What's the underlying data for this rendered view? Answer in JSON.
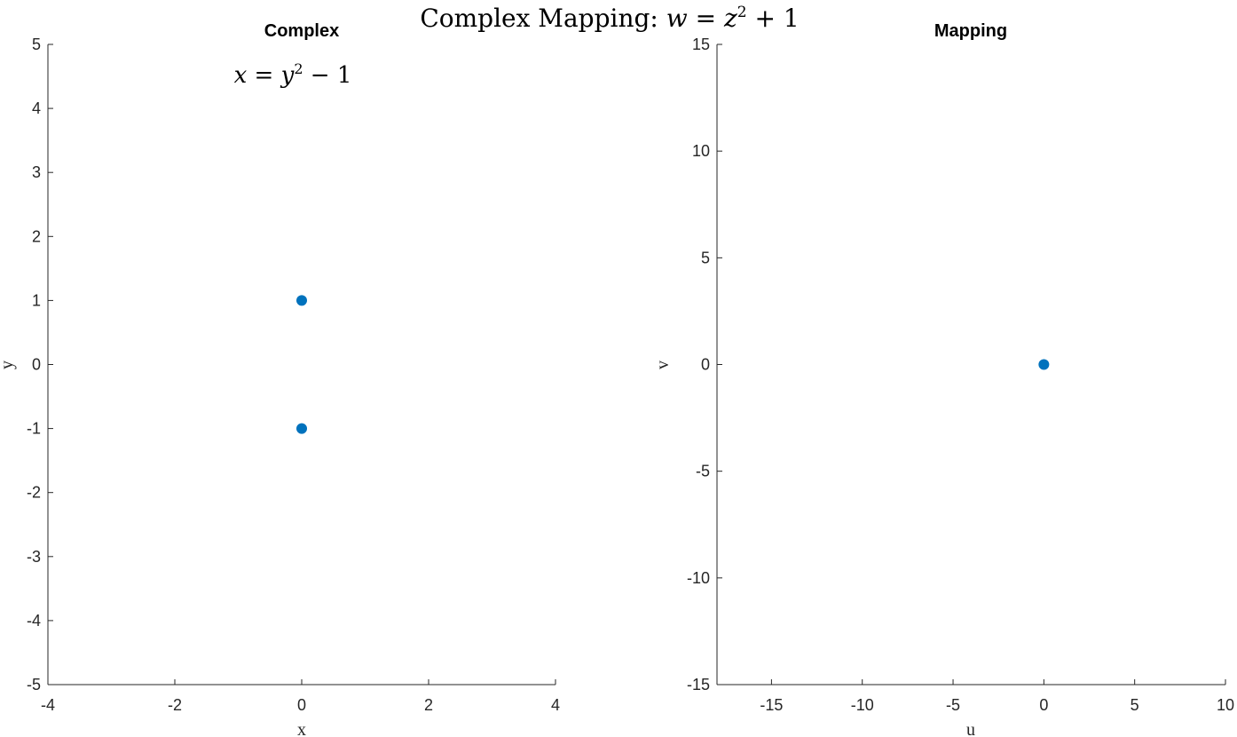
{
  "figure": {
    "suptitle": {
      "text_main": "Complex Mapping: ",
      "text_var": "w",
      "text_eq": " = ",
      "text_base": "z",
      "text_exp": "2",
      "text_tail": " + 1"
    }
  },
  "colors": {
    "marker": "#0072BD",
    "axis": "#262626"
  },
  "chart_data": [
    {
      "type": "scatter",
      "title": "Complex",
      "annotation": {
        "lhs": "x",
        "eq": " = ",
        "base": "y",
        "exp": "2",
        "tail": " − 1"
      },
      "xlabel": "x",
      "ylabel": "y",
      "xlim": [
        -4,
        4
      ],
      "ylim": [
        -5,
        5
      ],
      "xticks": [
        -4,
        -2,
        0,
        2,
        4
      ],
      "yticks": [
        -5,
        -4,
        -3,
        -2,
        -1,
        0,
        1,
        2,
        3,
        4,
        5
      ],
      "points": [
        {
          "x": 0,
          "y": 1
        },
        {
          "x": 0,
          "y": -1
        }
      ],
      "grid": false
    },
    {
      "type": "scatter",
      "title": "Mapping",
      "xlabel": "u",
      "ylabel": "v",
      "xlim": [
        -18,
        10
      ],
      "ylim": [
        -15,
        15
      ],
      "xticks": [
        -15,
        -10,
        -5,
        0,
        5,
        10
      ],
      "yticks": [
        -15,
        -10,
        -5,
        0,
        5,
        10,
        15
      ],
      "points": [
        {
          "x": 0,
          "y": 0
        }
      ],
      "grid": false
    }
  ]
}
